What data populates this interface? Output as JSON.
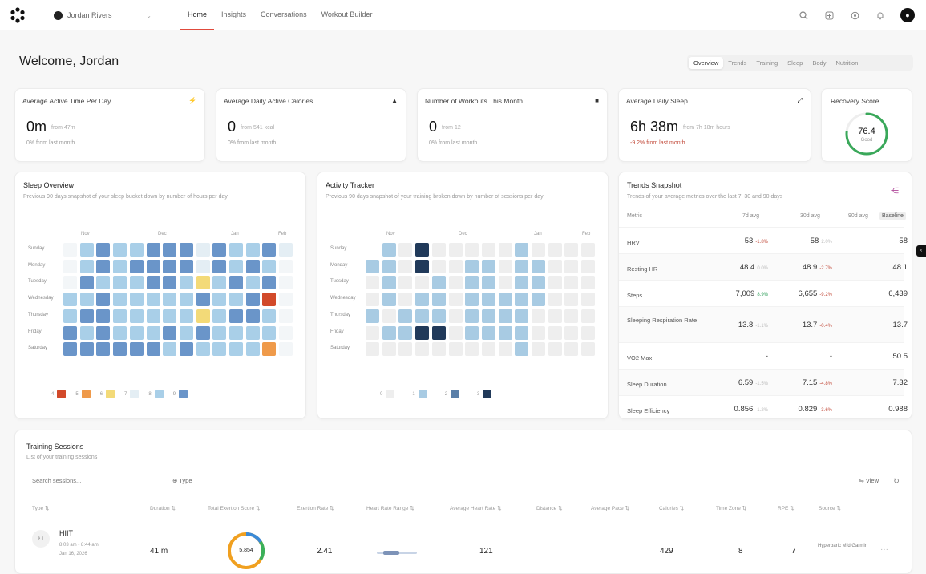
{
  "nav": {
    "account": "Jordan Rivers",
    "links": [
      "Home",
      "Insights",
      "Conversations",
      "Workout Builder"
    ]
  },
  "welcome": "Welcome, Jordan",
  "tabs": [
    "Overview",
    "Trends",
    "Training",
    "Sleep",
    "Body",
    "Nutrition"
  ],
  "stats": [
    {
      "label": "Average Active Time Per Day",
      "value": "0m",
      "sub": "from 47m",
      "delta": "0% from last month",
      "neg": false,
      "icon": "lightning-icon"
    },
    {
      "label": "Average Daily Active Calories",
      "value": "0",
      "sub": "from 541 kcal",
      "delta": "0% from last month",
      "neg": false,
      "icon": "flame-icon"
    },
    {
      "label": "Number of Workouts This Month",
      "value": "0",
      "sub": "from 12",
      "delta": "0% from last month",
      "neg": false,
      "icon": "lock-icon"
    },
    {
      "label": "Average Daily Sleep",
      "value": "6h 38m",
      "sub": "from 7h 18m hours",
      "delta": "-9.2% from last month",
      "neg": true,
      "icon": "expand-icon"
    }
  ],
  "recovery": {
    "label": "Recovery Score",
    "value": "76.4",
    "sub": "Good",
    "level": 0.764
  },
  "sleep": {
    "title": "Sleep Overview",
    "desc": "Previous 90 days snapshot of your sleep bucket down by number of hours per day",
    "months": [
      "Nov",
      "Dec",
      "Jan",
      "Feb"
    ],
    "days": [
      "Sunday",
      "Monday",
      "Tuesday",
      "Wednesday",
      "Thursday",
      "Friday",
      "Saturday"
    ],
    "legend": [
      "4",
      "5",
      "6",
      "7",
      "8",
      "9"
    ]
  },
  "activity": {
    "title": "Activity Tracker",
    "desc": "Previous 90 days snapshot of your training broken down by number of sessions per day",
    "months": [
      "Nov",
      "Dec",
      "Jan",
      "Feb"
    ],
    "days": [
      "Sunday",
      "Monday",
      "Tuesday",
      "Wednesday",
      "Thursday",
      "Friday",
      "Saturday"
    ],
    "legend": [
      "0",
      "1",
      "2",
      "3"
    ]
  },
  "trends": {
    "title": "Trends Snapshot",
    "desc": "Trends of your average metrics over the last 7, 30 and 90 days",
    "headers": [
      "Metric",
      "7d avg",
      "30d avg",
      "90d avg"
    ],
    "baseline": "Baseline",
    "rows": [
      {
        "name": "HRV",
        "a": "53",
        "ad": "-1.8%",
        "at": "neg",
        "b": "58",
        "bd": "2.0%",
        "bt": "mut",
        "c": "58"
      },
      {
        "name": "Resting HR",
        "a": "48.4",
        "ad": "0.0%",
        "at": "mut",
        "b": "48.9",
        "bd": "-2.7%",
        "bt": "neg",
        "c": "48.1"
      },
      {
        "name": "Steps",
        "a": "7,009",
        "ad": "8.9%",
        "at": "pos",
        "b": "6,655",
        "bd": "-9.2%",
        "bt": "neg",
        "c": "6,439"
      },
      {
        "name": "Sleeping Respiration Rate",
        "a": "13.8",
        "ad": "-1.1%",
        "at": "mut",
        "b": "13.7",
        "bd": "-0.4%",
        "bt": "neg",
        "c": "13.7"
      },
      {
        "name": "VO2 Max",
        "a": "-",
        "ad": "",
        "at": "mut",
        "b": "-",
        "bd": "",
        "bt": "mut",
        "c": "50.5"
      },
      {
        "name": "Sleep Duration",
        "a": "6.59",
        "ad": "-1.5%",
        "at": "mut",
        "b": "7.15",
        "bd": "-4.8%",
        "bt": "neg",
        "c": "7.32"
      },
      {
        "name": "Sleep Efficiency",
        "a": "0.856",
        "ad": "-1.2%",
        "at": "mut",
        "b": "0.829",
        "bd": "-3.6%",
        "bt": "neg",
        "c": "0.988"
      }
    ]
  },
  "training": {
    "title": "Training Sessions",
    "desc": "List of your training sessions",
    "search_placeholder": "Search sessions...",
    "type_btn": "Type",
    "view_btn": "View",
    "headers": [
      "Type",
      "Duration",
      "Total Exertion Score",
      "Exertion Rate",
      "Heart Rate Range",
      "Average Heart Rate",
      "Distance",
      "Average Pace",
      "Calories",
      "Time Zone",
      "RPE",
      "Source"
    ],
    "row": {
      "type": "HIIT",
      "time": "8:03 am - 8:44 am",
      "date": "Jan 16, 2026",
      "duration": "41 m",
      "score": "5,854",
      "rate": "2.41",
      "avg_hr": "121",
      "calories": "429",
      "tz": "8",
      "rpe": "7",
      "source": "Hyperbaric Mfd Garmin"
    }
  }
}
